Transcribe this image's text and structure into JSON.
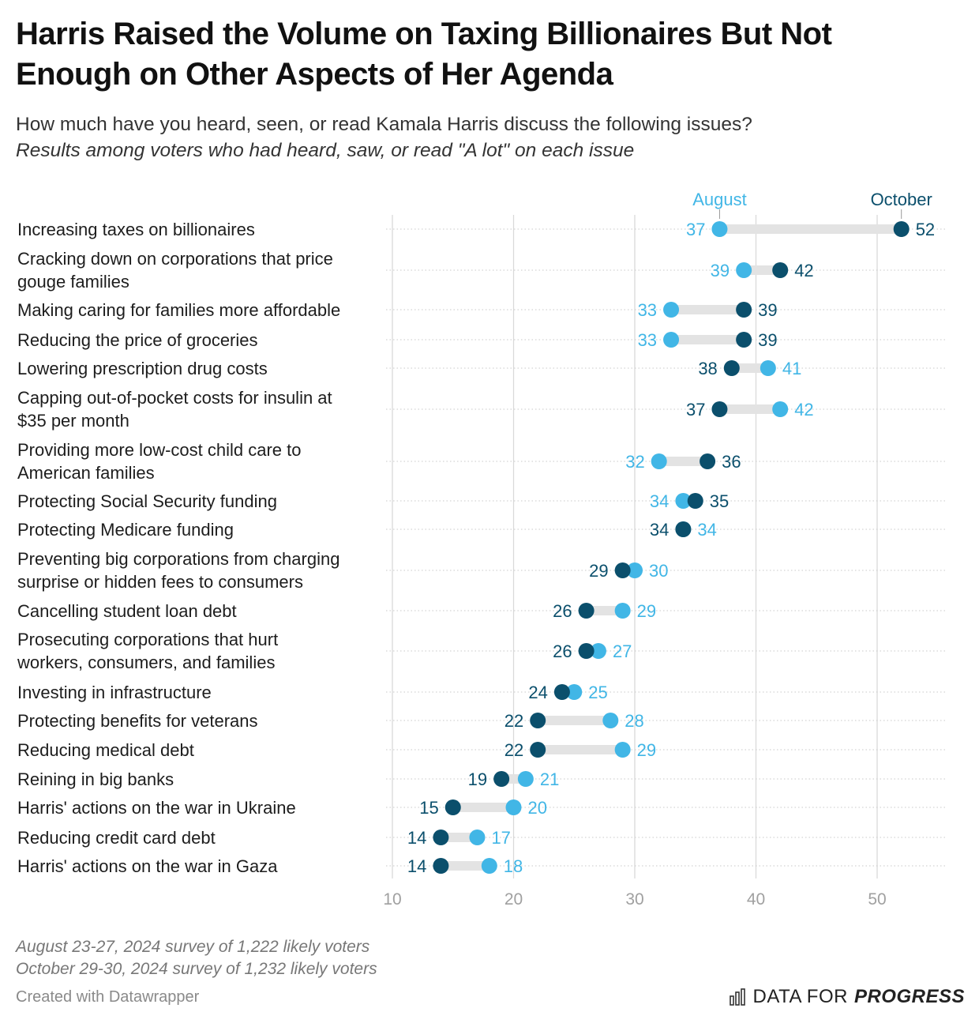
{
  "header": {
    "title": "Harris Raised the Volume on Taxing Billionaires But Not Enough on Other Aspects of Her Agenda",
    "subtitle": "How much have you heard, seen, or read Kamala Harris discuss the following issues?",
    "subtitle_italic": "Results among voters who had heard, saw, or read \"A lot\" on each issue"
  },
  "footer": {
    "note_1": "August 23-27, 2024 survey of 1,222 likely voters",
    "note_2": "October 29-30, 2024 survey of 1,232 likely voters",
    "credit": "Created with Datawrapper",
    "logo_part_1": "DATA FOR",
    "logo_part_2": "PROGRESS",
    "logo_icon": "bar-chart-icon"
  },
  "colors": {
    "august": "#41b6e6",
    "october": "#0b4f6c",
    "range_bar": "#e3e3e3",
    "grid": "#d9d9d9",
    "axis_text": "#a0a0a0"
  },
  "chart_data": {
    "type": "dot-range",
    "xlim": [
      10,
      55
    ],
    "x_ticks": [
      10,
      20,
      30,
      40,
      50
    ],
    "series": [
      {
        "name": "August",
        "color": "#41b6e6"
      },
      {
        "name": "October",
        "color": "#0b4f6c"
      }
    ],
    "legend_placement": "labels above first row",
    "grid": true,
    "rows": [
      {
        "label": "Increasing taxes on billionaires",
        "august": 37,
        "october": 52
      },
      {
        "label": "Cracking down on corporations that price gouge families",
        "august": 39,
        "october": 42
      },
      {
        "label": "Making caring for families more affordable",
        "august": 33,
        "october": 39
      },
      {
        "label": "Reducing the price of groceries",
        "august": 33,
        "october": 39
      },
      {
        "label": "Lowering prescription drug costs",
        "august": 41,
        "october": 38
      },
      {
        "label": "Capping out-of-pocket costs for insulin at $35 per month",
        "august": 42,
        "october": 37
      },
      {
        "label": "Providing more low-cost child care to American families",
        "august": 32,
        "october": 36
      },
      {
        "label": "Protecting Social Security funding",
        "august": 34,
        "october": 35
      },
      {
        "label": "Protecting Medicare funding",
        "august": 34,
        "october": 34
      },
      {
        "label": "Preventing big corporations from charging surprise or hidden fees to consumers",
        "august": 30,
        "october": 29
      },
      {
        "label": "Cancelling student loan debt",
        "august": 29,
        "october": 26
      },
      {
        "label": "Prosecuting corporations that hurt workers, consumers, and families",
        "august": 27,
        "october": 26
      },
      {
        "label": "Investing in infrastructure",
        "august": 25,
        "october": 24
      },
      {
        "label": "Protecting benefits for veterans",
        "august": 28,
        "october": 22
      },
      {
        "label": "Reducing medical debt",
        "august": 29,
        "october": 22
      },
      {
        "label": "Reining in big banks",
        "august": 21,
        "october": 19
      },
      {
        "label": "Harris' actions on the war in Ukraine",
        "august": 20,
        "october": 15
      },
      {
        "label": "Reducing credit card debt",
        "august": 17,
        "october": 14
      },
      {
        "label": "Harris' actions on the war in Gaza",
        "august": 18,
        "october": 14
      }
    ]
  }
}
